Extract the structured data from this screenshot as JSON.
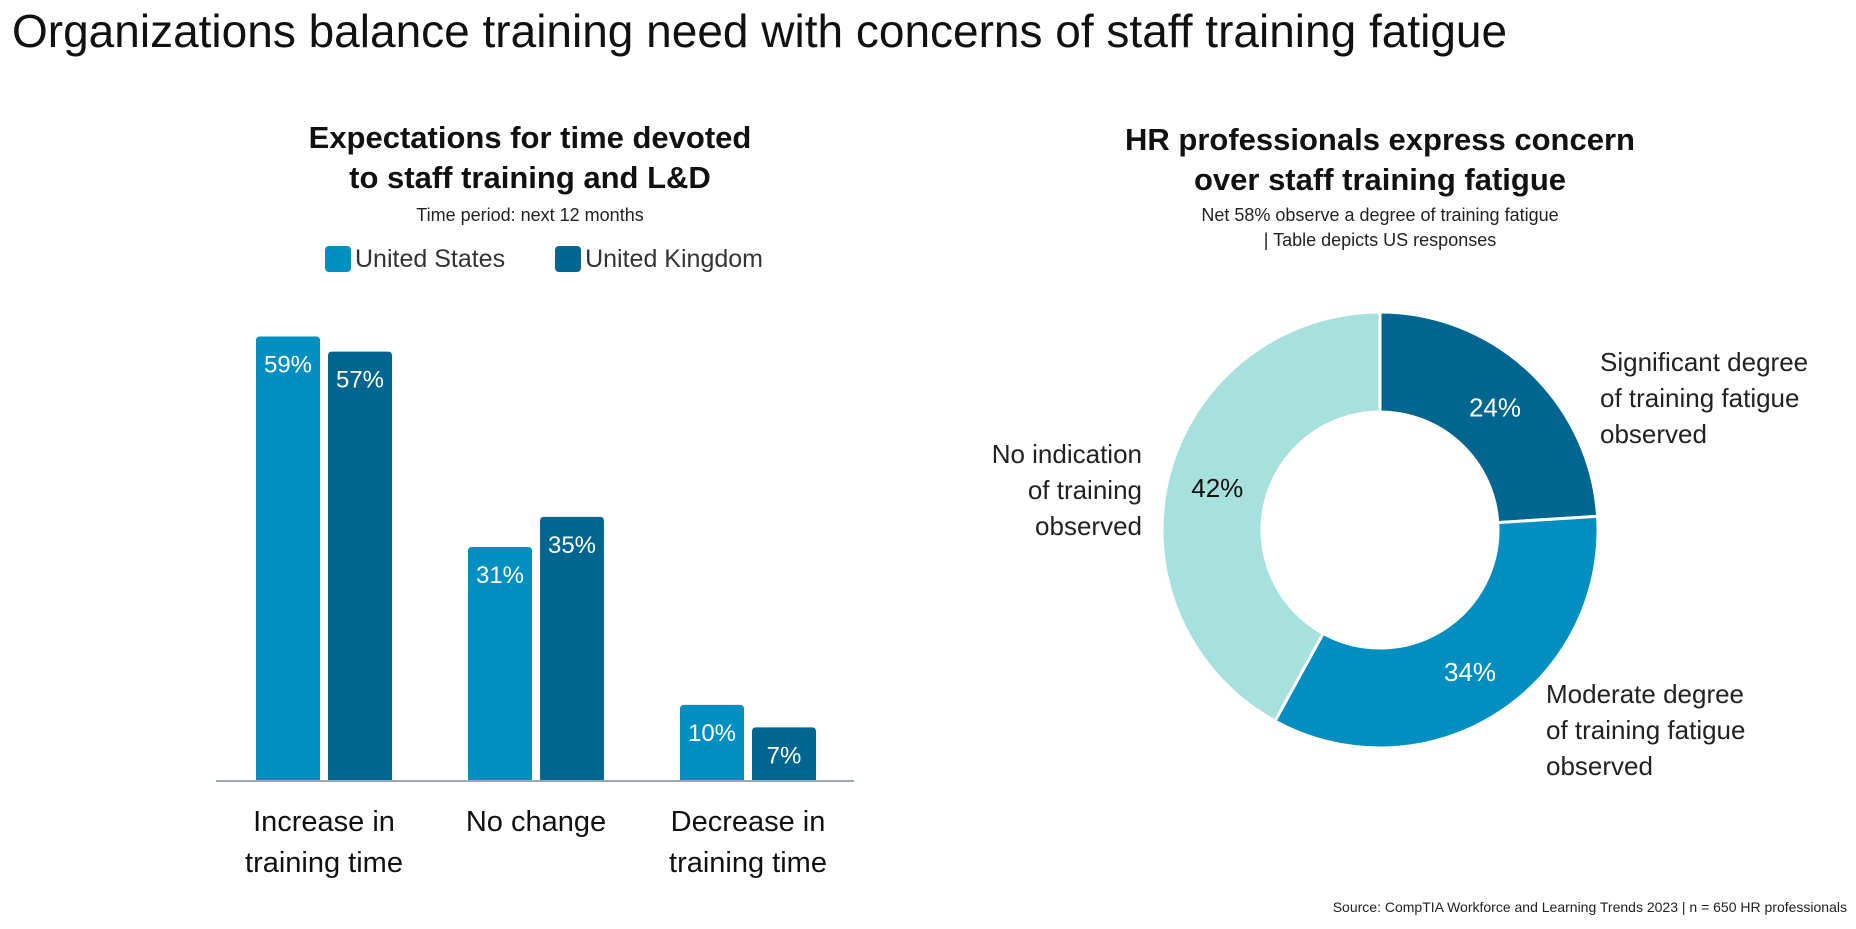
{
  "page": {
    "title": "Organizations balance training need with concerns of staff training fatigue",
    "source": "Source: CompTIA Workforce and Learning Trends 2023 | n = 650 HR professionals"
  },
  "left_panel": {
    "title_lines": [
      "Expectations for time devoted",
      "to staff training and L&D"
    ],
    "subtitle": "Time period: next 12 months"
  },
  "right_panel": {
    "title_lines": [
      "HR professionals express concern",
      "over staff training fatigue"
    ],
    "subtitle_lines": [
      "Net 58% observe a degree of training fatigue",
      "| Table depicts US responses"
    ]
  },
  "colors": {
    "us": "#008FC0",
    "uk": "#006690",
    "light": "#A6E1DE",
    "axis": "#9EA8B4"
  },
  "chart_data": [
    {
      "type": "bar",
      "categories": [
        [
          "Increase in",
          "training time"
        ],
        [
          "No change"
        ],
        [
          "Decrease in",
          "training time"
        ]
      ],
      "series": [
        {
          "name": "United States",
          "values": [
            59,
            31,
            10
          ],
          "labels": [
            "59%",
            "31%",
            "10%"
          ]
        },
        {
          "name": "United Kingdom",
          "values": [
            57,
            35,
            7
          ],
          "labels": [
            "57%",
            "35%",
            "7%"
          ]
        }
      ],
      "ylim": [
        0,
        62
      ],
      "legend_position": "top"
    },
    {
      "type": "pie",
      "variant": "donut",
      "slices": [
        {
          "label_lines": [
            "Significant degree",
            "of training fatigue",
            "observed"
          ],
          "value": 24,
          "value_label": "24%"
        },
        {
          "label_lines": [
            "Moderate degree",
            "of training fatigue",
            "observed"
          ],
          "value": 34,
          "value_label": "34%"
        },
        {
          "label_lines": [
            "No indication",
            "of training",
            "observed"
          ],
          "value": 42,
          "value_label": "42%"
        }
      ]
    }
  ]
}
